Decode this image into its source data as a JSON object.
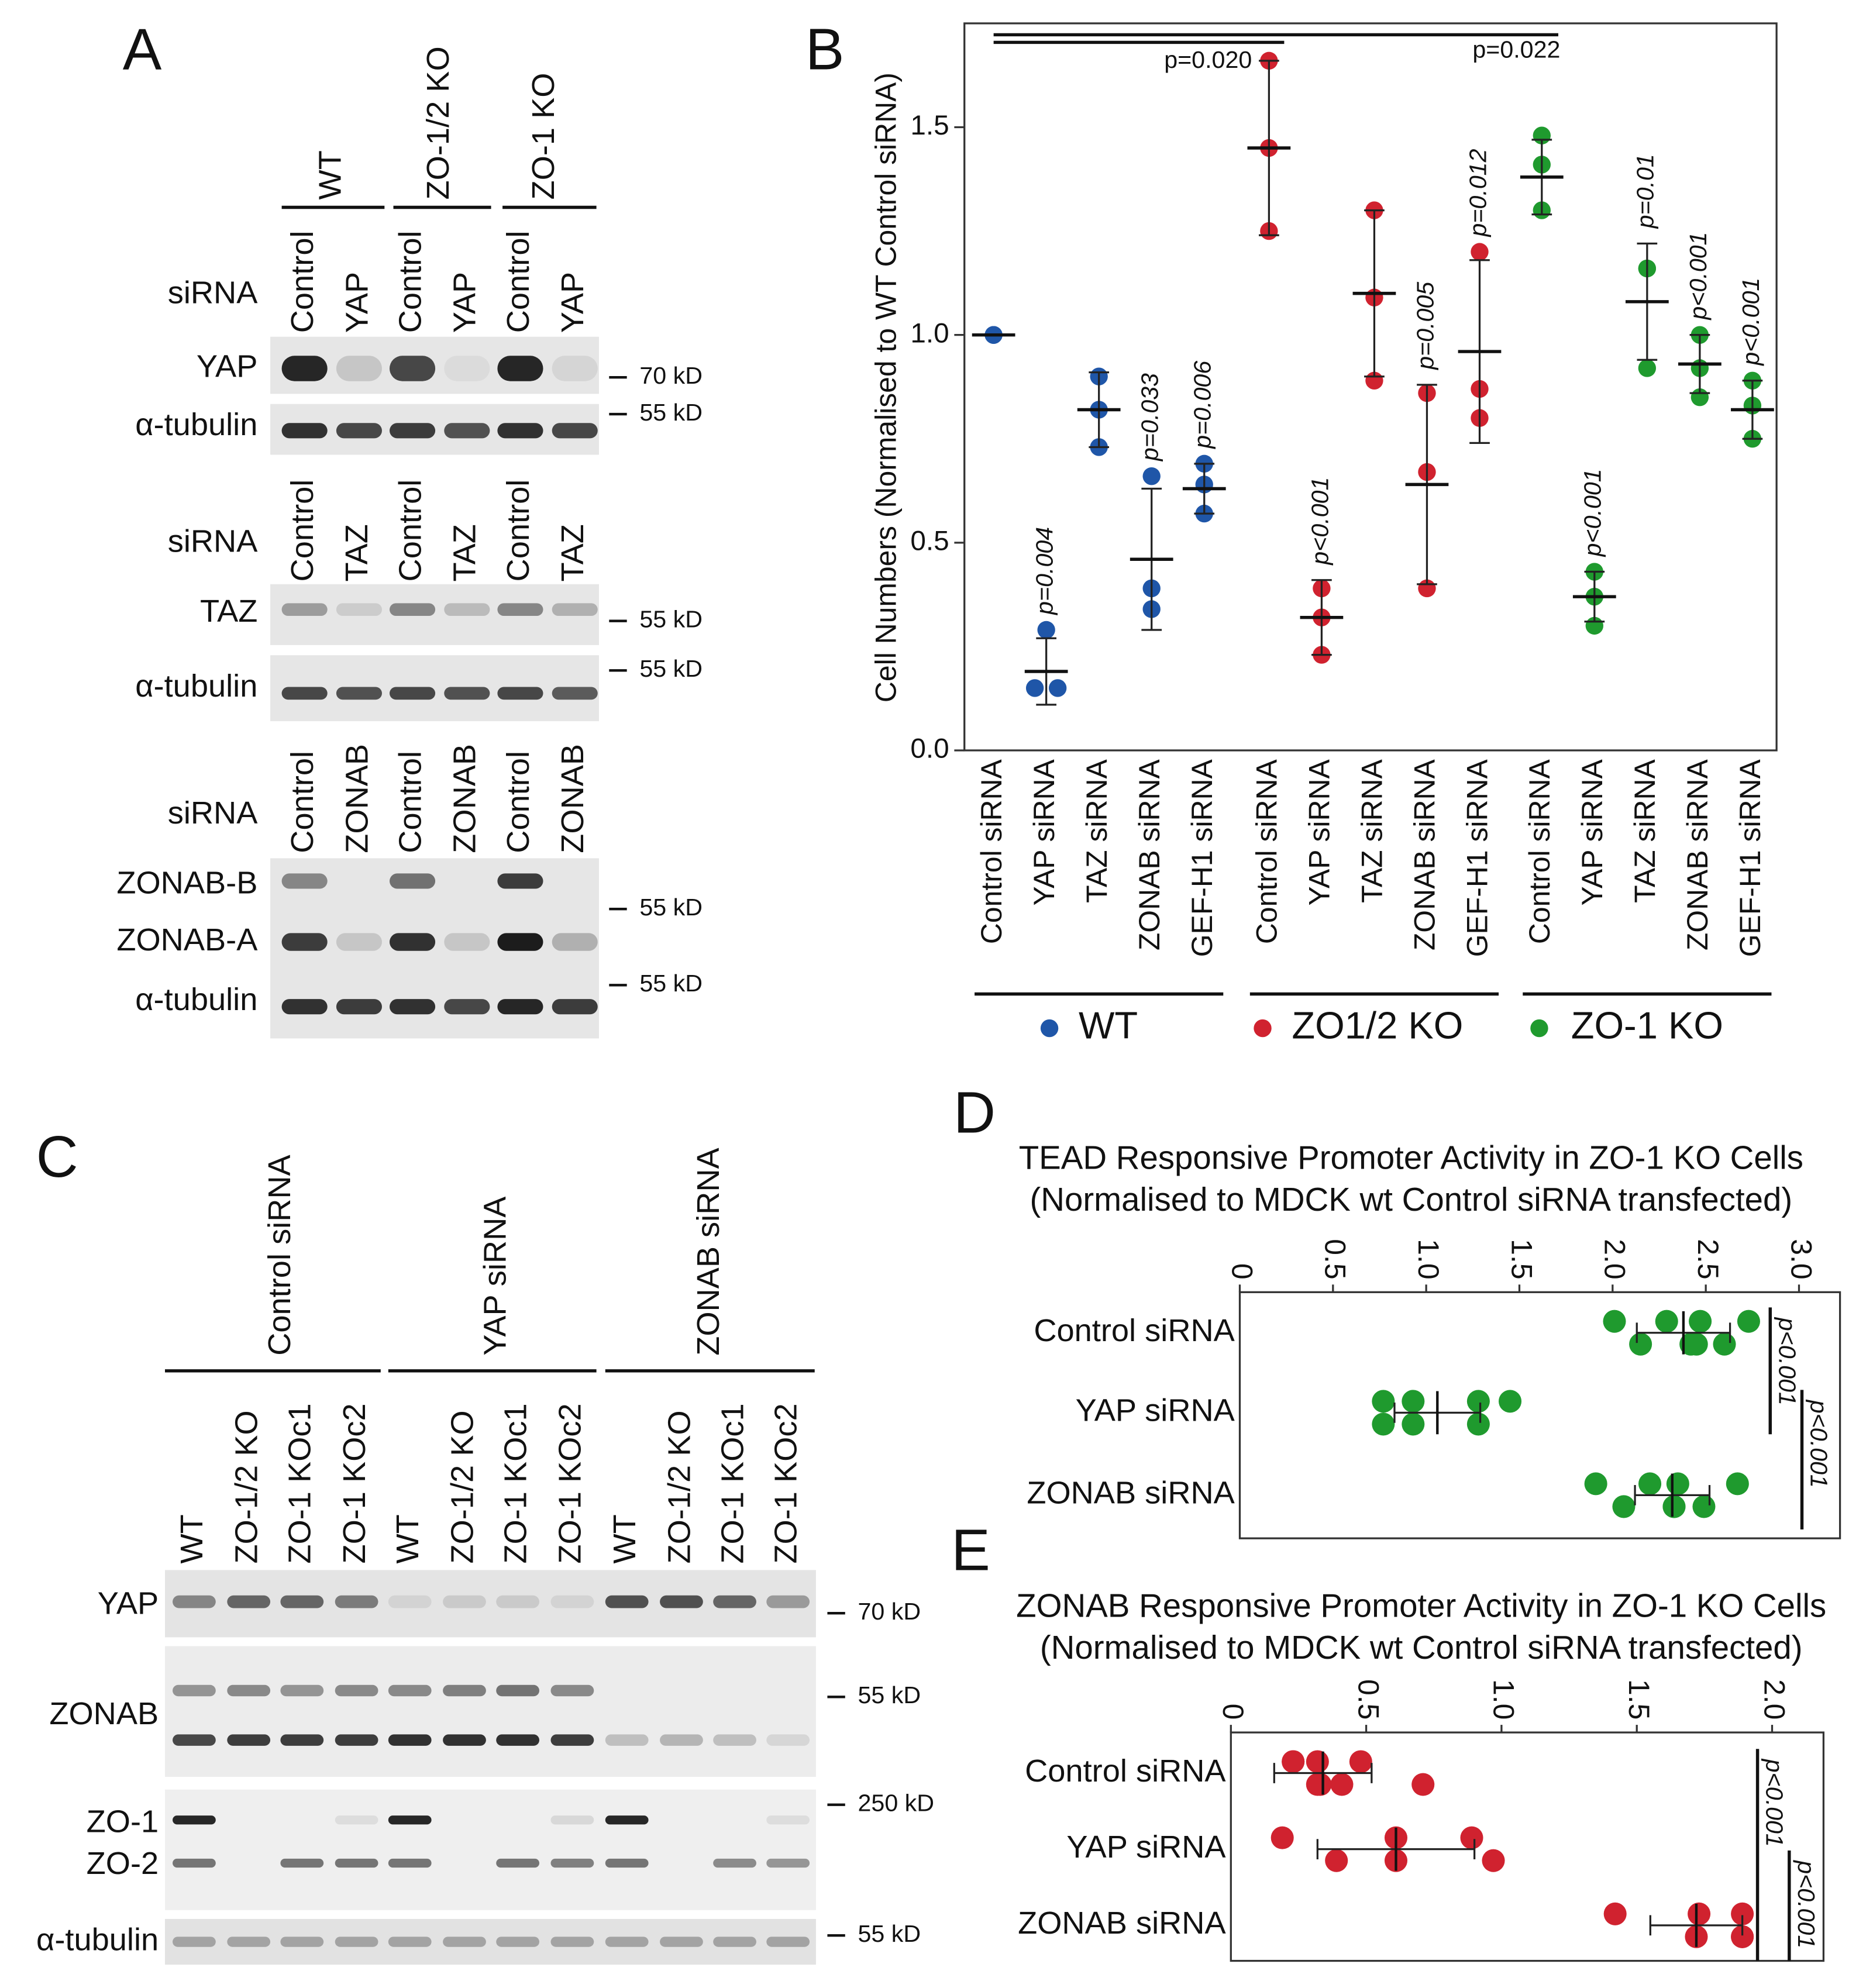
{
  "panel_a": {
    "label": "A",
    "genotypes": [
      "WT",
      "ZO-1/2 KO",
      "ZO-1 KO"
    ],
    "blocks": [
      {
        "row_label": "siRNA",
        "lanes": [
          "Control",
          "YAP",
          "Control",
          "YAP",
          "Control",
          "YAP"
        ],
        "proteins": [
          "YAP",
          "α-tubulin"
        ],
        "markers": [
          "70 kD",
          "55 kD"
        ]
      },
      {
        "row_label": "siRNA",
        "lanes": [
          "Control",
          "TAZ",
          "Control",
          "TAZ",
          "Control",
          "TAZ"
        ],
        "proteins": [
          "TAZ",
          "α-tubulin"
        ],
        "markers": [
          "55 kD",
          "55 kD"
        ]
      },
      {
        "row_label": "siRNA",
        "lanes": [
          "Control",
          "ZONAB",
          "Control",
          "ZONAB",
          "Control",
          "ZONAB"
        ],
        "proteins": [
          "ZONAB-B",
          "ZONAB-A",
          "α-tubulin"
        ],
        "markers": [
          "55 kD",
          "55 kD"
        ]
      }
    ]
  },
  "panel_c": {
    "label": "C",
    "treatments": [
      "Control siRNA",
      "YAP siRNA",
      "ZONAB siRNA"
    ],
    "lanes": [
      "WT",
      "ZO-1/2 KO",
      "ZO-1 KOc1",
      "ZO-1 KOc2",
      "WT",
      "ZO-1/2 KO",
      "ZO-1 KOc1",
      "ZO-1 KOc2",
      "WT",
      "ZO-1/2 KO",
      "ZO-1 KOc1",
      "ZO-1 KOc2"
    ],
    "proteins": [
      "YAP",
      "ZONAB",
      "ZO-1",
      "ZO-2",
      "α-tubulin"
    ],
    "markers": [
      "70 kD",
      "55 kD",
      "250 kD",
      "55 kD"
    ]
  },
  "chart_data": [
    {
      "type": "dot",
      "panel_label": "B",
      "y_label": "Cell Numbers (Normalised to WT Control siRNA)",
      "categories": [
        "Control siRNA",
        "YAP siRNA",
        "TAZ siRNA",
        "ZONAB siRNA",
        "GEF-H1 siRNA"
      ],
      "ylim": [
        0,
        1.75
      ],
      "yticks": [
        {
          "value": 0,
          "label": "0.0"
        },
        0.5,
        {
          "value": 1,
          "label": "1.0"
        },
        1.5
      ],
      "annotations": [
        "p=0.020",
        "p=0.022"
      ],
      "series": [
        {
          "name": "WT",
          "color": "#1f56a8",
          "values": [
            [
              1,
              1,
              1
            ],
            [
              0.29,
              0.15,
              0.15
            ],
            [
              0.9,
              0.82,
              0.73
            ],
            [
              0.66,
              0.39,
              0.34
            ],
            [
              0.69,
              0.64,
              0.57
            ]
          ],
          "means": [
            1,
            0.19,
            0.82,
            0.46,
            0.63
          ],
          "sds": [
            0,
            0.08,
            0.09,
            0.17,
            0.06
          ],
          "p_labels": [
            null,
            "p=0.004",
            null,
            "p=0.033",
            "p=0.006"
          ]
        },
        {
          "name": "ZO1/2 KO",
          "color": "#d0222f",
          "values": [
            [
              1.66,
              1.45,
              1.25
            ],
            [
              0.39,
              0.32,
              0.23
            ],
            [
              1.3,
              1.09,
              0.89
            ],
            [
              0.86,
              0.67,
              0.39
            ],
            [
              1.2,
              0.87,
              0.8
            ]
          ],
          "means": [
            1.45,
            0.32,
            1.1,
            0.64,
            0.96
          ],
          "sds": [
            0.21,
            0.09,
            0.2,
            0.24,
            0.22
          ],
          "p_labels": [
            null,
            "p<0.001",
            null,
            "p=0.005",
            "p=0.012"
          ]
        },
        {
          "name": "ZO-1 KO",
          "color": "#1f9a2e",
          "values": [
            [
              1.48,
              1.41,
              1.3
            ],
            [
              0.43,
              0.37,
              0.3
            ],
            [
              1.16,
              1.16,
              0.92
            ],
            [
              1,
              0.92,
              0.85
            ],
            [
              0.89,
              0.83,
              0.75
            ]
          ],
          "means": [
            1.38,
            0.37,
            1.08,
            0.93,
            0.82
          ],
          "sds": [
            0.09,
            0.06,
            0.14,
            0.07,
            0.07
          ],
          "p_labels": [
            null,
            "p<0.001",
            "p=0.01",
            "p<0.001",
            "p<0.001"
          ]
        }
      ]
    },
    {
      "type": "dot_h",
      "panel_label": "D",
      "title": [
        "TEAD Responsive Promoter Activity in ZO-1 KO Cells",
        "(Normalised to MDCK wt Control siRNA transfected)"
      ],
      "categories": [
        "Control siRNA",
        "YAP siRNA",
        "ZONAB siRNA"
      ],
      "xlim": [
        0,
        3.22
      ],
      "xticks": [
        0,
        0.5,
        {
          "value": 1,
          "label": "1.0"
        },
        1.5,
        {
          "value": 2,
          "label": "2.0"
        },
        2.5,
        {
          "value": 3,
          "label": "3.0"
        }
      ],
      "annotations": [
        "p<0.001",
        "p<0.001"
      ],
      "series": [
        {
          "color": "#1f9a2e",
          "values": [
            [
              2.01,
              2.15,
              2.29,
              2.42,
              2.47,
              2.6,
              2.73,
              2.45
            ],
            [
              0.77,
              0.77,
              0.93,
              0.93,
              1.28,
              1.28,
              1.45
            ],
            [
              1.91,
              2.06,
              2.2,
              2.33,
              2.35,
              2.49,
              2.67,
              2.33
            ]
          ],
          "means": [
            2.38,
            1.06,
            2.32
          ],
          "sds": [
            0.25,
            0.23,
            0.2
          ]
        }
      ]
    },
    {
      "type": "dot_h",
      "panel_label": "E",
      "title": [
        "ZONAB Responsive Promoter Activity in ZO-1 KO Cells",
        "(Normalised to MDCK wt Control siRNA transfected)"
      ],
      "categories": [
        "Control siRNA",
        "YAP siRNA",
        "ZONAB siRNA"
      ],
      "xlim": [
        0,
        2.19
      ],
      "xticks": [
        0,
        0.5,
        {
          "value": 1,
          "label": "1.0"
        },
        1.5,
        {
          "value": 2,
          "label": "2.0"
        }
      ],
      "annotations": [
        "p<0.001",
        "p<0.001"
      ],
      "series": [
        {
          "color": "#d0222f",
          "values": [
            [
              0.23,
              0.32,
              0.32,
              0.41,
              0.48,
              0.71,
              0.23,
              0.33
            ],
            [
              0.19,
              0.39,
              0.61,
              0.61,
              0.89,
              0.97
            ],
            [
              1.42,
              1.72,
              1.89,
              1.89,
              1.73,
              1.89
            ]
          ],
          "means": [
            0.34,
            0.61,
            1.72
          ],
          "sds": [
            0.18,
            0.29,
            0.17
          ]
        }
      ]
    }
  ]
}
